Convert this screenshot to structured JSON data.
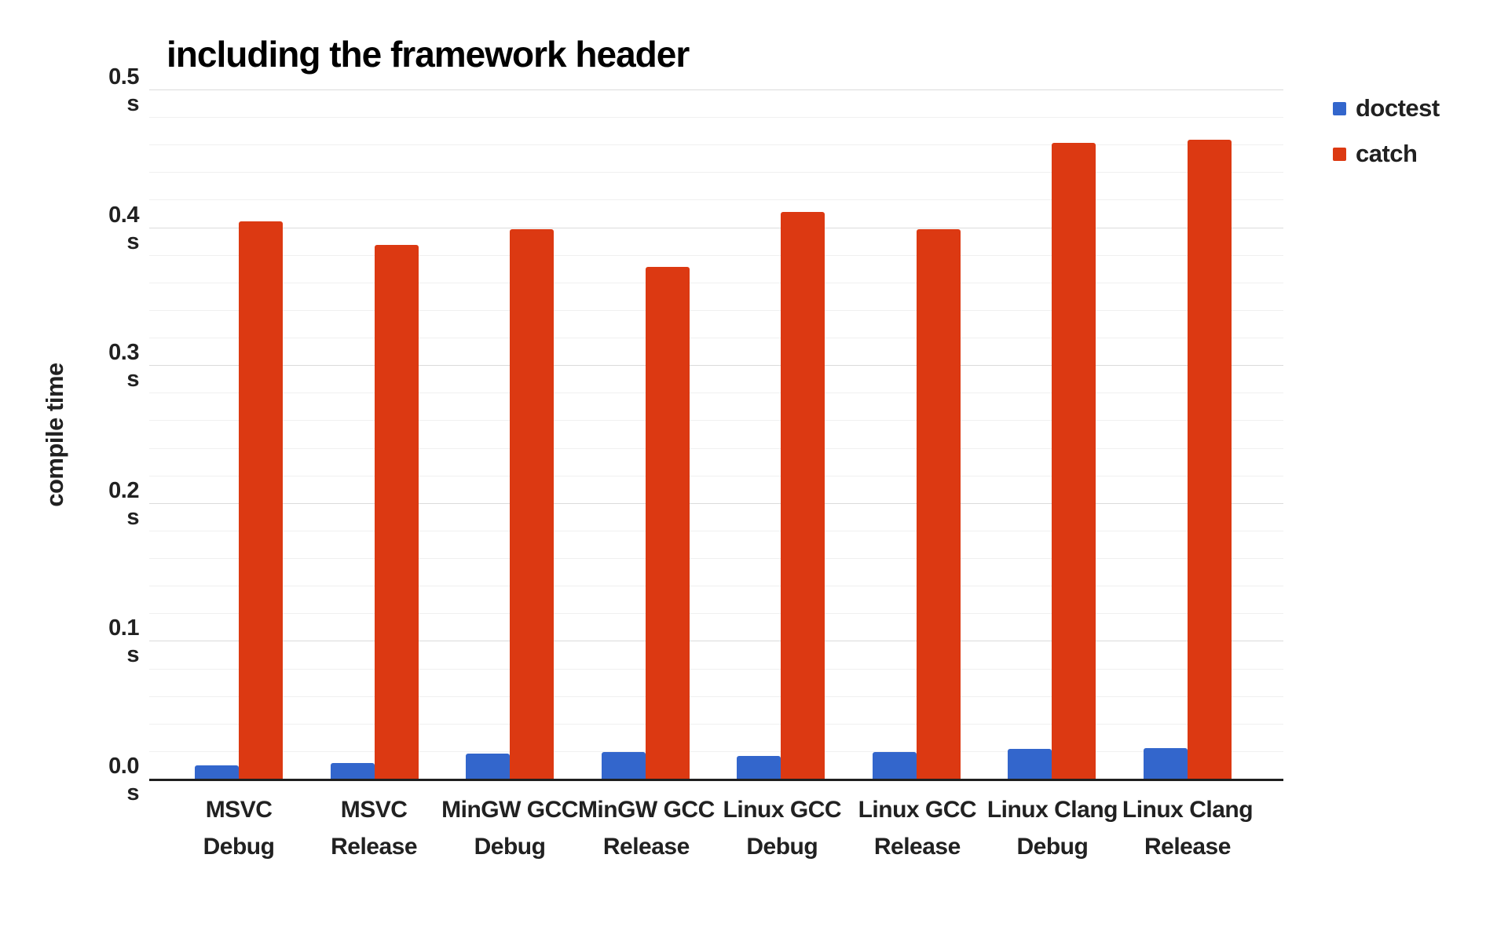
{
  "page": {
    "background": "#ffffff"
  },
  "chart_data": {
    "type": "bar",
    "title": "including the framework header",
    "ylabel": "compile time",
    "unit": "s",
    "ylim": [
      0,
      0.5
    ],
    "ytick_labels": [
      "0.5",
      "0.4",
      "0.3",
      "0.2",
      "0.1",
      "0.0"
    ],
    "ytick_values": [
      0.5,
      0.4,
      0.3,
      0.2,
      0.1,
      0.0
    ],
    "minor_gridline_step": 0.02,
    "grid": true,
    "legend_position": "top-right",
    "categories": [
      {
        "top": "MSVC",
        "bottom": "Debug"
      },
      {
        "top": "MSVC",
        "bottom": "Release"
      },
      {
        "top": "MinGW GCC",
        "bottom": "Debug"
      },
      {
        "top": "MinGW GCC",
        "bottom": "Release"
      },
      {
        "top": "Linux GCC",
        "bottom": "Debug"
      },
      {
        "top": "Linux GCC",
        "bottom": "Release"
      },
      {
        "top": "Linux Clang",
        "bottom": "Debug"
      },
      {
        "top": "Linux Clang",
        "bottom": "Release"
      }
    ],
    "series": [
      {
        "name": "doctest",
        "color": "#3366cc",
        "values": [
          0.01,
          0.012,
          0.019,
          0.02,
          0.017,
          0.02,
          0.022,
          0.023
        ]
      },
      {
        "name": "catch",
        "color": "#dc3912",
        "values": [
          0.405,
          0.388,
          0.399,
          0.372,
          0.412,
          0.399,
          0.462,
          0.464
        ]
      }
    ]
  }
}
